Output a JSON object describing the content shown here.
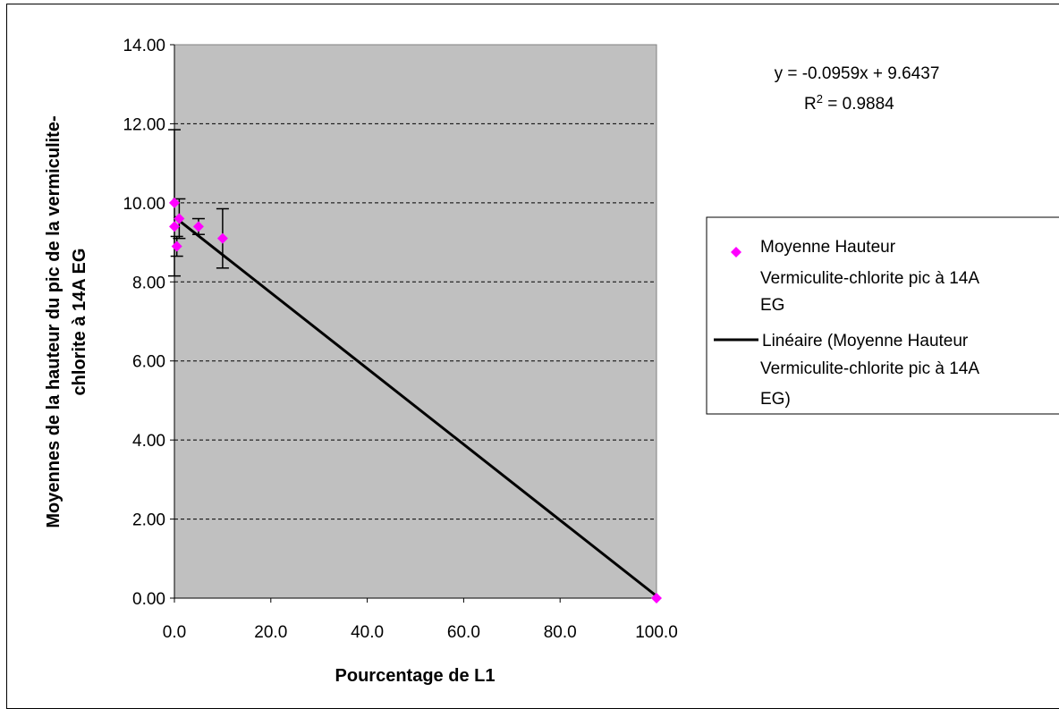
{
  "chart_data": {
    "type": "scatter",
    "xlabel": "Pourcentage de L1",
    "ylabel": [
      "Moyennes de la hauteur du pic de la vermiculite-",
      "chlorite à 14A EG"
    ],
    "xlim": [
      0,
      100
    ],
    "ylim": [
      0,
      14
    ],
    "x_ticks": [
      "0.0",
      "20.0",
      "40.0",
      "60.0",
      "80.0",
      "100.0"
    ],
    "y_ticks": [
      "0.00",
      "2.00",
      "4.00",
      "6.00",
      "8.00",
      "10.00",
      "12.00",
      "14.00"
    ],
    "grid": "horizontal dashed",
    "legend_position": "right",
    "plot_background": "#c0c0c0",
    "series": [
      {
        "name": "Moyenne Hauteur Vermiculite-chlorite pic à 14A EG",
        "legend_lines": [
          "Moyenne Hauteur",
          "Vermiculite-chlorite pic à 14A",
          "EG"
        ],
        "marker": "diamond",
        "color": "#ff00ff",
        "points": [
          {
            "x": 0,
            "y": 10.0,
            "err": 1.85
          },
          {
            "x": 0,
            "y": 9.4,
            "err": 0
          },
          {
            "x": 0.5,
            "y": 8.9,
            "err": 0.25
          },
          {
            "x": 1,
            "y": 9.6,
            "err": 0.5
          },
          {
            "x": 5,
            "y": 9.4,
            "err": 0.2
          },
          {
            "x": 10,
            "y": 9.1,
            "err": 0.75
          },
          {
            "x": 100,
            "y": 0.0,
            "err": 0
          }
        ]
      },
      {
        "name": "Linéaire (Moyenne Hauteur Vermiculite-chlorite pic à 14A EG)",
        "legend_lines": [
          "Linéaire (Moyenne Hauteur",
          "Vermiculite-chlorite pic à 14A",
          "EG)"
        ],
        "type": "line",
        "color": "#000000",
        "slope": -0.0959,
        "intercept": 9.6437
      }
    ],
    "annotations": {
      "equation": "y = -0.0959x + 9.6437",
      "r2_prefix": "R",
      "r2_sup": "2",
      "r2_value": " = 0.9884"
    }
  }
}
